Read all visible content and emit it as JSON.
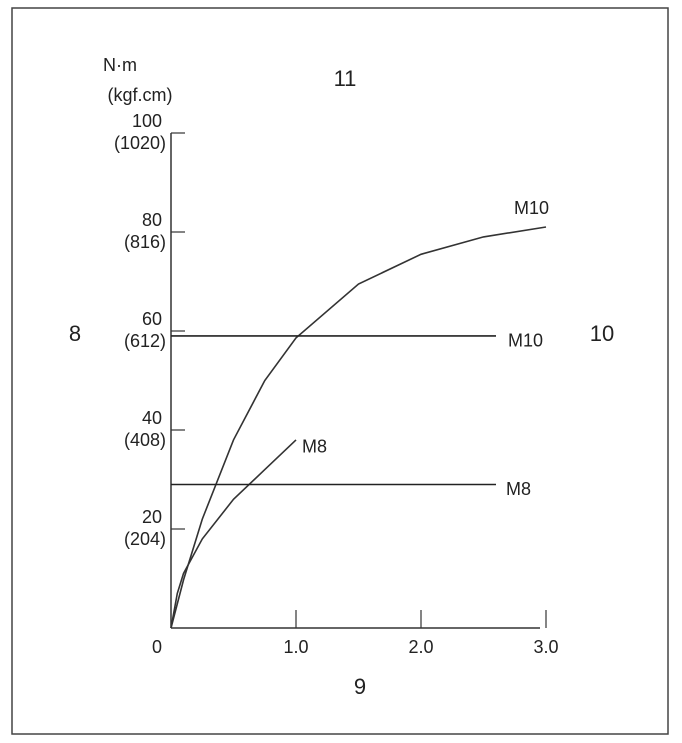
{
  "chart_data": {
    "type": "line",
    "y_axis_label": [
      "N·m",
      "(kgf.cm)"
    ],
    "annotations": [
      "11",
      "8",
      "10",
      "9"
    ],
    "xlim": [
      0,
      3
    ],
    "ylim": [
      0,
      100
    ],
    "xticks": [
      0,
      {
        "value": 1,
        "label": "1.0"
      },
      {
        "value": 2,
        "label": "2.0"
      },
      {
        "value": 3,
        "label": "3.0"
      }
    ],
    "yticks": [
      {
        "value": 20,
        "label": [
          "20",
          "(204)"
        ]
      },
      {
        "value": 40,
        "label": [
          "40",
          "(408)"
        ]
      },
      {
        "value": 60,
        "label": [
          "60",
          "(612)"
        ]
      },
      {
        "value": 80,
        "label": [
          "80",
          "(816)"
        ]
      },
      {
        "value": 100,
        "label": [
          "100",
          "(1020)"
        ]
      }
    ],
    "series": [
      {
        "name": "M10",
        "color": "#333333",
        "x": [
          0,
          0.1,
          0.25,
          0.5,
          0.75,
          1.0,
          1.5,
          2.0,
          2.5,
          3.0
        ],
        "values": [
          0,
          9.7,
          22,
          38,
          50,
          58.6,
          69.5,
          75.5,
          79,
          81
        ]
      },
      {
        "name": "M10",
        "color": "#222222",
        "x": [
          0,
          2.6
        ],
        "values": [
          59,
          59
        ]
      },
      {
        "name": "M8",
        "color": "#333333",
        "x": [
          0,
          0.05,
          0.1,
          0.25,
          0.5,
          0.75,
          1.0
        ],
        "values": [
          0,
          7,
          11,
          18,
          26,
          32,
          38
        ]
      },
      {
        "name": "M8",
        "color": "#222222",
        "x": [
          0,
          2.6
        ],
        "values": [
          29,
          29
        ]
      }
    ]
  }
}
